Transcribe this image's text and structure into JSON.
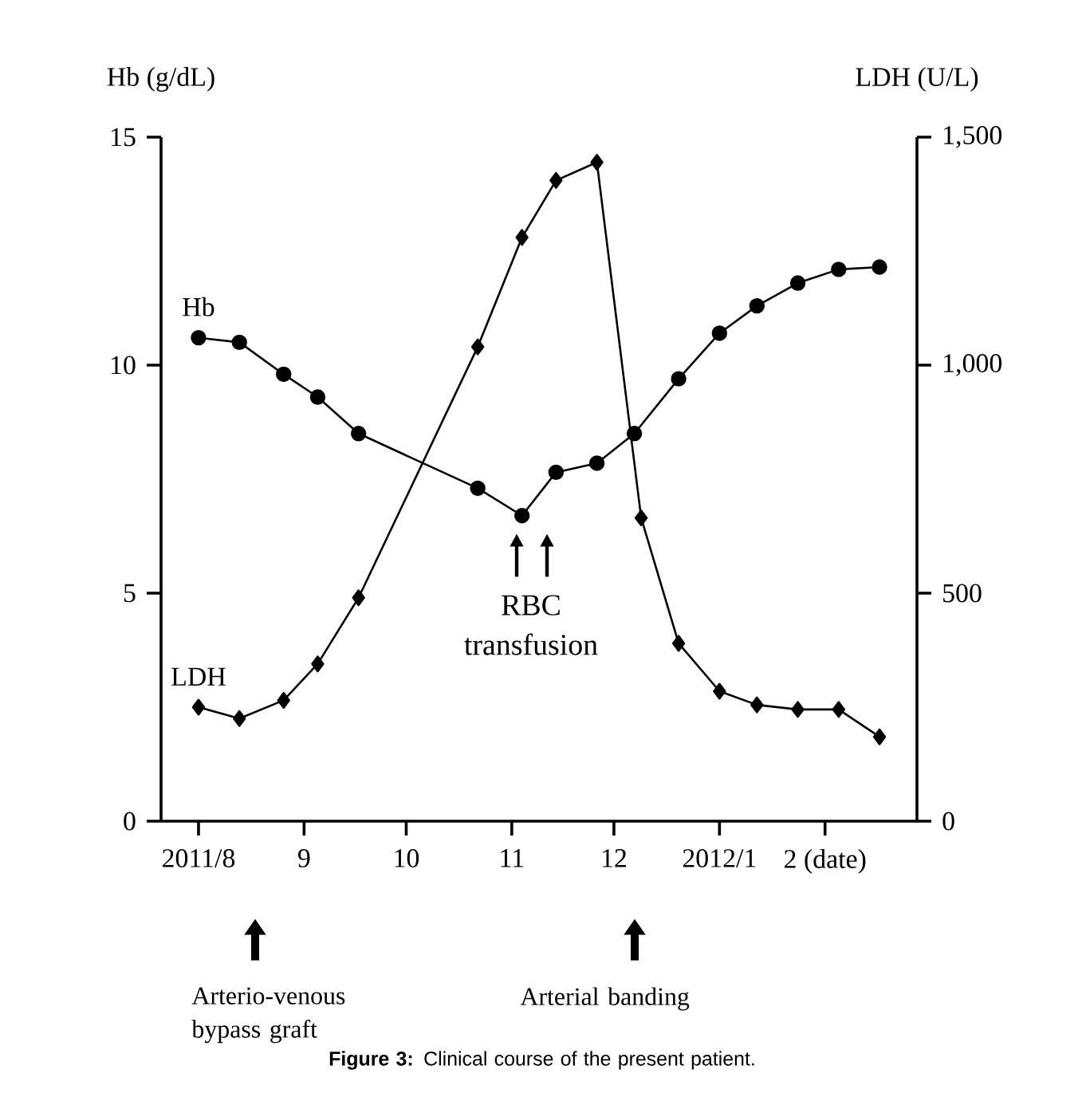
{
  "chart_data": {
    "type": "line",
    "ylabel": "Hb (g/dL)",
    "y2label": "LDH (U/L)",
    "xlim": [
      "2011-07-21",
      "2012-02-28"
    ],
    "xticks": [
      {
        "value": "2011-08",
        "label": "2011/8"
      },
      {
        "value": "2011-09",
        "label": "9"
      },
      {
        "value": "2011-10",
        "label": "10"
      },
      {
        "value": "2011-11",
        "label": "11"
      },
      {
        "value": "2011-12",
        "label": "12"
      },
      {
        "value": "2012-01",
        "label": "2012/1"
      },
      {
        "value": "2012-02",
        "label": "2 (date)"
      }
    ],
    "ylim": [
      0,
      15
    ],
    "yticks": [
      0,
      5,
      10,
      15
    ],
    "y2lim": [
      0,
      1500
    ],
    "y2ticks": [
      0,
      500,
      {
        "value": 1000,
        "label": "1,000"
      },
      {
        "value": 1500,
        "label": "1,500"
      }
    ],
    "series": [
      {
        "name": "Hb",
        "color": "#000000",
        "marker": "circle",
        "x": [
          "2011-08-01",
          "2011-08-13",
          "2011-08-26",
          "2011-09-05",
          "2011-09-17",
          "2011-10-22",
          "2011-11-04",
          "2011-11-14",
          "2011-11-26",
          "2011-12-07",
          "2011-12-20",
          "2012-01-01",
          "2012-01-12",
          "2012-01-24",
          "2012-02-05",
          "2012-02-17"
        ],
        "values": [
          10.6,
          10.5,
          9.8,
          9.3,
          8.5,
          7.3,
          6.7,
          7.65,
          7.85,
          8.5,
          9.7,
          10.7,
          11.3,
          11.8,
          12.1,
          12.15
        ]
      },
      {
        "name": "LDH",
        "color": "#000000",
        "marker": "diamond",
        "axis": "y2",
        "x": [
          "2011-08-01",
          "2011-08-13",
          "2011-08-26",
          "2011-09-05",
          "2011-09-17",
          "2011-10-22",
          "2011-11-04",
          "2011-11-14",
          "2011-11-26",
          "2011-12-09",
          "2011-12-20",
          "2012-01-01",
          "2012-01-12",
          "2012-01-24",
          "2012-02-05",
          "2012-02-17"
        ],
        "values": [
          250,
          225,
          265,
          345,
          490,
          1040,
          1280,
          1405,
          1445,
          665,
          390,
          285,
          255,
          245,
          245,
          185
        ]
      }
    ],
    "annotations": [
      "RBC transfusion",
      "Arterio-venous bypass graft",
      "Arterial banding",
      "**Figure 3:** Clinical course of the present patient."
    ]
  }
}
